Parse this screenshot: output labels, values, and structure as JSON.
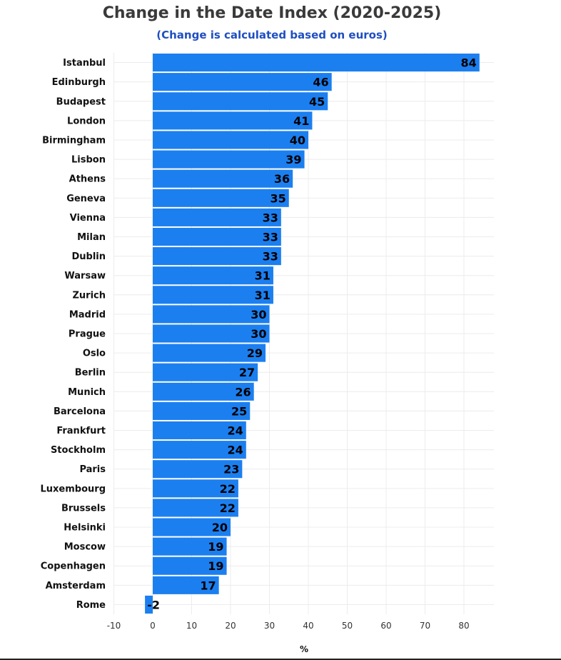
{
  "chart_data": {
    "type": "bar",
    "orientation": "horizontal",
    "title": "Change in the Date Index (2020-2025)",
    "subtitle": "(Change is calculated based on euros)",
    "xlabel": "%",
    "ylabel": "",
    "xlim": [
      -10,
      85
    ],
    "xticks": [
      -10,
      0,
      10,
      20,
      30,
      40,
      50,
      60,
      70,
      80
    ],
    "grid": true,
    "color": "#1c7ff0",
    "categories": [
      "Istanbul",
      "Edinburgh",
      "Budapest",
      "London",
      "Birmingham",
      "Lisbon",
      "Athens",
      "Geneva",
      "Vienna",
      "Milan",
      "Dublin",
      "Warsaw",
      "Zurich",
      "Madrid",
      "Prague",
      "Oslo",
      "Berlin",
      "Munich",
      "Barcelona",
      "Frankfurt",
      "Stockholm",
      "Paris",
      "Luxembourg",
      "Brussels",
      "Helsinki",
      "Moscow",
      "Copenhagen",
      "Amsterdam",
      "Rome"
    ],
    "values": [
      84,
      46,
      45,
      41,
      40,
      39,
      36,
      35,
      33,
      33,
      33,
      31,
      31,
      30,
      30,
      29,
      27,
      26,
      25,
      24,
      24,
      23,
      22,
      22,
      20,
      19,
      19,
      17,
      -2
    ],
    "value_labels": [
      "84",
      "46",
      "45",
      "41",
      "40",
      "39",
      "36",
      "35",
      "33",
      "33",
      "33",
      "31",
      "31",
      "30",
      "30",
      "29",
      "27",
      "26",
      "25",
      "24",
      "24",
      "23",
      "22",
      "22",
      "20",
      "19",
      "19",
      "17",
      "-2"
    ]
  }
}
